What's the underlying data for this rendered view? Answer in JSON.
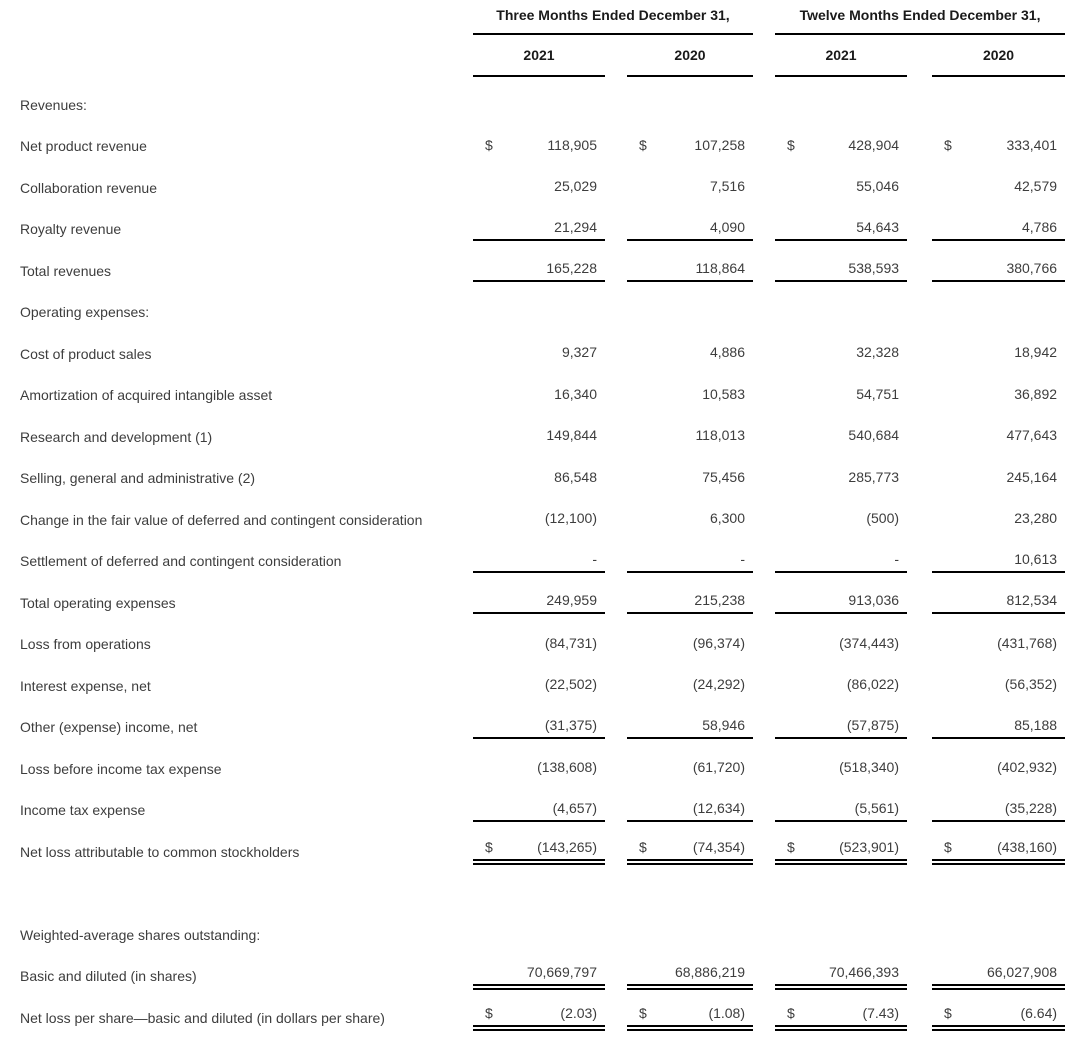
{
  "header": {
    "groups": [
      {
        "label": "Three Months Ended December 31,",
        "years": [
          "2021",
          "2020"
        ]
      },
      {
        "label": "Twelve Months Ended December 31,",
        "years": [
          "2021",
          "2020"
        ]
      }
    ]
  },
  "table": {
    "currency": "$",
    "rows": [
      {
        "type": "section",
        "label": "Revenues:"
      },
      {
        "type": "data",
        "label": "Net product revenue",
        "dollar": true,
        "underline": "none",
        "values": [
          "118,905",
          "107,258",
          "428,904",
          "333,401"
        ]
      },
      {
        "type": "data",
        "label": "Collaboration revenue",
        "dollar": false,
        "underline": "none",
        "values": [
          "25,029",
          "7,516",
          "55,046",
          "42,579"
        ]
      },
      {
        "type": "data",
        "label": "Royalty revenue",
        "dollar": false,
        "underline": "single",
        "values": [
          "21,294",
          "4,090",
          "54,643",
          "4,786"
        ]
      },
      {
        "type": "data",
        "label": "Total revenues",
        "dollar": false,
        "underline": "single",
        "values": [
          "165,228",
          "118,864",
          "538,593",
          "380,766"
        ]
      },
      {
        "type": "section",
        "label": "Operating expenses:"
      },
      {
        "type": "data",
        "label": "Cost of product sales",
        "dollar": false,
        "underline": "none",
        "values": [
          "9,327",
          "4,886",
          "32,328",
          "18,942"
        ]
      },
      {
        "type": "data",
        "label": "Amortization of acquired intangible asset",
        "dollar": false,
        "underline": "none",
        "values": [
          "16,340",
          "10,583",
          "54,751",
          "36,892"
        ]
      },
      {
        "type": "data",
        "label": "Research and development (1)",
        "dollar": false,
        "underline": "none",
        "values": [
          "149,844",
          "118,013",
          "540,684",
          "477,643"
        ]
      },
      {
        "type": "data",
        "label": "Selling, general and administrative (2)",
        "dollar": false,
        "underline": "none",
        "values": [
          "86,548",
          "75,456",
          "285,773",
          "245,164"
        ]
      },
      {
        "type": "data",
        "label": "Change in the fair value of deferred and contingent consideration",
        "dollar": false,
        "underline": "none",
        "values": [
          "(12,100)",
          "6,300",
          "(500)",
          "23,280"
        ]
      },
      {
        "type": "data",
        "label": "Settlement of deferred and contingent consideration",
        "dollar": false,
        "underline": "single",
        "values": [
          "-",
          "-",
          "-",
          "10,613"
        ]
      },
      {
        "type": "data",
        "label": "Total operating expenses",
        "dollar": false,
        "underline": "single",
        "values": [
          "249,959",
          "215,238",
          "913,036",
          "812,534"
        ]
      },
      {
        "type": "data",
        "label": "Loss from operations",
        "dollar": false,
        "underline": "none",
        "values": [
          "(84,731)",
          "(96,374)",
          "(374,443)",
          "(431,768)"
        ]
      },
      {
        "type": "data",
        "label": "Interest expense, net",
        "dollar": false,
        "underline": "none",
        "values": [
          "(22,502)",
          "(24,292)",
          "(86,022)",
          "(56,352)"
        ]
      },
      {
        "type": "data",
        "label": "Other (expense) income, net",
        "dollar": false,
        "underline": "single",
        "values": [
          "(31,375)",
          "58,946",
          "(57,875)",
          "85,188"
        ]
      },
      {
        "type": "data",
        "label": "Loss before income tax expense",
        "dollar": false,
        "underline": "none",
        "values": [
          "(138,608)",
          "(61,720)",
          "(518,340)",
          "(402,932)"
        ]
      },
      {
        "type": "data",
        "label": "Income tax expense",
        "dollar": false,
        "underline": "single",
        "values": [
          "(4,657)",
          "(12,634)",
          "(5,561)",
          "(35,228)"
        ]
      },
      {
        "type": "data",
        "label": "Net loss attributable to common stockholders",
        "dollar": true,
        "underline": "double",
        "values": [
          "(143,265)",
          "(74,354)",
          "(523,901)",
          "(438,160)"
        ]
      },
      {
        "type": "spacer",
        "label": ""
      },
      {
        "type": "section",
        "label": "Weighted-average shares outstanding:"
      },
      {
        "type": "data",
        "label": "Basic and diluted (in shares)",
        "dollar": false,
        "underline": "double",
        "values": [
          "70,669,797",
          "68,886,219",
          "70,466,393",
          "66,027,908"
        ]
      },
      {
        "type": "data",
        "label": "Net loss per share—basic and diluted (in dollars per share)",
        "dollar": true,
        "underline": "double",
        "values": [
          "(2.03)",
          "(1.08)",
          "(7.43)",
          "(6.64)"
        ]
      }
    ]
  }
}
